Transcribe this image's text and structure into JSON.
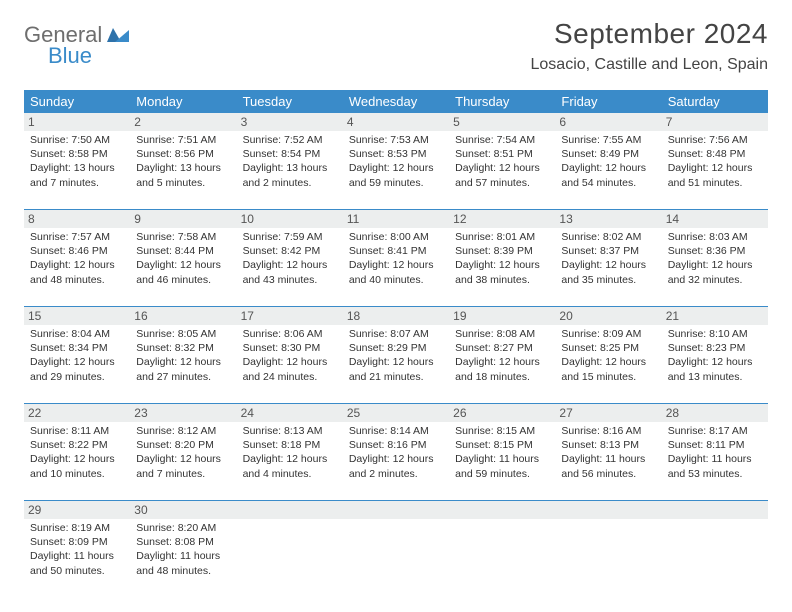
{
  "logo": {
    "word1": "General",
    "word2": "Blue"
  },
  "title": "September 2024",
  "location": "Losacio, Castille and Leon, Spain",
  "colors": {
    "header_bg": "#3a8bc9",
    "header_text": "#ffffff",
    "daynum_bg": "#eceeee",
    "rule": "#3a8bc9",
    "logo_gray": "#6e6e6e",
    "logo_blue": "#3a8bc9"
  },
  "weekdays": [
    "Sunday",
    "Monday",
    "Tuesday",
    "Wednesday",
    "Thursday",
    "Friday",
    "Saturday"
  ],
  "weeks": [
    [
      {
        "n": "1",
        "sunrise": "Sunrise: 7:50 AM",
        "sunset": "Sunset: 8:58 PM",
        "daylight": "Daylight: 13 hours and 7 minutes."
      },
      {
        "n": "2",
        "sunrise": "Sunrise: 7:51 AM",
        "sunset": "Sunset: 8:56 PM",
        "daylight": "Daylight: 13 hours and 5 minutes."
      },
      {
        "n": "3",
        "sunrise": "Sunrise: 7:52 AM",
        "sunset": "Sunset: 8:54 PM",
        "daylight": "Daylight: 13 hours and 2 minutes."
      },
      {
        "n": "4",
        "sunrise": "Sunrise: 7:53 AM",
        "sunset": "Sunset: 8:53 PM",
        "daylight": "Daylight: 12 hours and 59 minutes."
      },
      {
        "n": "5",
        "sunrise": "Sunrise: 7:54 AM",
        "sunset": "Sunset: 8:51 PM",
        "daylight": "Daylight: 12 hours and 57 minutes."
      },
      {
        "n": "6",
        "sunrise": "Sunrise: 7:55 AM",
        "sunset": "Sunset: 8:49 PM",
        "daylight": "Daylight: 12 hours and 54 minutes."
      },
      {
        "n": "7",
        "sunrise": "Sunrise: 7:56 AM",
        "sunset": "Sunset: 8:48 PM",
        "daylight": "Daylight: 12 hours and 51 minutes."
      }
    ],
    [
      {
        "n": "8",
        "sunrise": "Sunrise: 7:57 AM",
        "sunset": "Sunset: 8:46 PM",
        "daylight": "Daylight: 12 hours and 48 minutes."
      },
      {
        "n": "9",
        "sunrise": "Sunrise: 7:58 AM",
        "sunset": "Sunset: 8:44 PM",
        "daylight": "Daylight: 12 hours and 46 minutes."
      },
      {
        "n": "10",
        "sunrise": "Sunrise: 7:59 AM",
        "sunset": "Sunset: 8:42 PM",
        "daylight": "Daylight: 12 hours and 43 minutes."
      },
      {
        "n": "11",
        "sunrise": "Sunrise: 8:00 AM",
        "sunset": "Sunset: 8:41 PM",
        "daylight": "Daylight: 12 hours and 40 minutes."
      },
      {
        "n": "12",
        "sunrise": "Sunrise: 8:01 AM",
        "sunset": "Sunset: 8:39 PM",
        "daylight": "Daylight: 12 hours and 38 minutes."
      },
      {
        "n": "13",
        "sunrise": "Sunrise: 8:02 AM",
        "sunset": "Sunset: 8:37 PM",
        "daylight": "Daylight: 12 hours and 35 minutes."
      },
      {
        "n": "14",
        "sunrise": "Sunrise: 8:03 AM",
        "sunset": "Sunset: 8:36 PM",
        "daylight": "Daylight: 12 hours and 32 minutes."
      }
    ],
    [
      {
        "n": "15",
        "sunrise": "Sunrise: 8:04 AM",
        "sunset": "Sunset: 8:34 PM",
        "daylight": "Daylight: 12 hours and 29 minutes."
      },
      {
        "n": "16",
        "sunrise": "Sunrise: 8:05 AM",
        "sunset": "Sunset: 8:32 PM",
        "daylight": "Daylight: 12 hours and 27 minutes."
      },
      {
        "n": "17",
        "sunrise": "Sunrise: 8:06 AM",
        "sunset": "Sunset: 8:30 PM",
        "daylight": "Daylight: 12 hours and 24 minutes."
      },
      {
        "n": "18",
        "sunrise": "Sunrise: 8:07 AM",
        "sunset": "Sunset: 8:29 PM",
        "daylight": "Daylight: 12 hours and 21 minutes."
      },
      {
        "n": "19",
        "sunrise": "Sunrise: 8:08 AM",
        "sunset": "Sunset: 8:27 PM",
        "daylight": "Daylight: 12 hours and 18 minutes."
      },
      {
        "n": "20",
        "sunrise": "Sunrise: 8:09 AM",
        "sunset": "Sunset: 8:25 PM",
        "daylight": "Daylight: 12 hours and 15 minutes."
      },
      {
        "n": "21",
        "sunrise": "Sunrise: 8:10 AM",
        "sunset": "Sunset: 8:23 PM",
        "daylight": "Daylight: 12 hours and 13 minutes."
      }
    ],
    [
      {
        "n": "22",
        "sunrise": "Sunrise: 8:11 AM",
        "sunset": "Sunset: 8:22 PM",
        "daylight": "Daylight: 12 hours and 10 minutes."
      },
      {
        "n": "23",
        "sunrise": "Sunrise: 8:12 AM",
        "sunset": "Sunset: 8:20 PM",
        "daylight": "Daylight: 12 hours and 7 minutes."
      },
      {
        "n": "24",
        "sunrise": "Sunrise: 8:13 AM",
        "sunset": "Sunset: 8:18 PM",
        "daylight": "Daylight: 12 hours and 4 minutes."
      },
      {
        "n": "25",
        "sunrise": "Sunrise: 8:14 AM",
        "sunset": "Sunset: 8:16 PM",
        "daylight": "Daylight: 12 hours and 2 minutes."
      },
      {
        "n": "26",
        "sunrise": "Sunrise: 8:15 AM",
        "sunset": "Sunset: 8:15 PM",
        "daylight": "Daylight: 11 hours and 59 minutes."
      },
      {
        "n": "27",
        "sunrise": "Sunrise: 8:16 AM",
        "sunset": "Sunset: 8:13 PM",
        "daylight": "Daylight: 11 hours and 56 minutes."
      },
      {
        "n": "28",
        "sunrise": "Sunrise: 8:17 AM",
        "sunset": "Sunset: 8:11 PM",
        "daylight": "Daylight: 11 hours and 53 minutes."
      }
    ],
    [
      {
        "n": "29",
        "sunrise": "Sunrise: 8:19 AM",
        "sunset": "Sunset: 8:09 PM",
        "daylight": "Daylight: 11 hours and 50 minutes."
      },
      {
        "n": "30",
        "sunrise": "Sunrise: 8:20 AM",
        "sunset": "Sunset: 8:08 PM",
        "daylight": "Daylight: 11 hours and 48 minutes."
      },
      null,
      null,
      null,
      null,
      null
    ]
  ]
}
